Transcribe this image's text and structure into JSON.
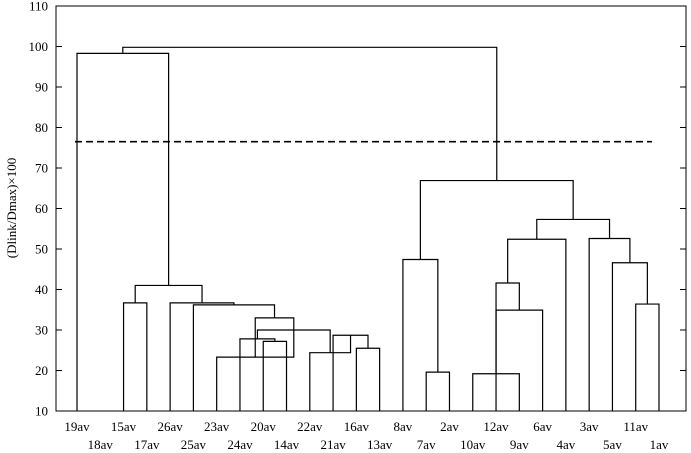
{
  "chart_data": {
    "type": "dendrogram",
    "ylabel": "(Dlink/Dmax)×100",
    "ylim": [
      10,
      110
    ],
    "yticks": [
      10,
      20,
      30,
      40,
      50,
      60,
      70,
      80,
      90,
      100,
      110
    ],
    "threshold": 76.5,
    "leaves": [
      "19av",
      "18av",
      "15av",
      "17av",
      "26av",
      "25av",
      "23av",
      "24av",
      "20av",
      "14av",
      "22av",
      "21av",
      "16av",
      "13av",
      "8av",
      "7av",
      "2av",
      "10av",
      "12av",
      "9av",
      "6av",
      "4av",
      "3av",
      "5av",
      "11av",
      "1av"
    ],
    "merges": [
      {
        "id": "A",
        "children": [
          "16av",
          "13av"
        ],
        "height": 25.5
      },
      {
        "id": "B",
        "children": [
          "21av",
          "A"
        ],
        "height": 28.7
      },
      {
        "id": "C",
        "children": [
          "20av",
          "14av"
        ],
        "height": 27.2
      },
      {
        "id": "D",
        "children": [
          "24av",
          "C"
        ],
        "height": 27.8
      },
      {
        "id": "E",
        "children": [
          "22av",
          "B"
        ],
        "height": 24.4
      },
      {
        "id": "F",
        "children": [
          "D",
          "E"
        ],
        "height": 30.0
      },
      {
        "id": "G",
        "children": [
          "23av",
          "F"
        ],
        "height": 23.3
      },
      {
        "id": "H",
        "children": [
          "G",
          "F"
        ],
        "height": 33.0
      },
      {
        "id": "I",
        "children": [
          "25av",
          "H"
        ],
        "height": 36.2
      },
      {
        "id": "J",
        "children": [
          "26av",
          "I"
        ],
        "height": 36.7
      },
      {
        "id": "K",
        "children": [
          "15av",
          "17av"
        ],
        "height": 36.7
      },
      {
        "id": "L",
        "children": [
          "K",
          "J"
        ],
        "height": 41.0
      },
      {
        "id": "M",
        "children": [
          "19av",
          "L"
        ],
        "height": 98.3
      },
      {
        "id": "N",
        "children": [
          "7av",
          "2av"
        ],
        "height": 19.6
      },
      {
        "id": "O",
        "children": [
          "8av",
          "N"
        ],
        "height": 47.4
      },
      {
        "id": "P",
        "children": [
          "10av",
          "9av"
        ],
        "height": 19.2
      },
      {
        "id": "Q",
        "children": [
          "P",
          "6av"
        ],
        "height": 34.9
      },
      {
        "id": "R",
        "children": [
          "12av",
          "Q"
        ],
        "height": 41.6
      },
      {
        "id": "S",
        "children": [
          "R",
          "4av"
        ],
        "height": 52.4
      },
      {
        "id": "T",
        "children": [
          "11av",
          "1av"
        ],
        "height": 36.4
      },
      {
        "id": "U",
        "children": [
          "5av",
          "T"
        ],
        "height": 46.6
      },
      {
        "id": "V",
        "children": [
          "3av",
          "U"
        ],
        "height": 52.6
      },
      {
        "id": "W",
        "children": [
          "S",
          "V"
        ],
        "height": 57.3
      },
      {
        "id": "X",
        "children": [
          "O",
          "W"
        ],
        "height": 66.9
      },
      {
        "id": "Y",
        "children": [
          "M",
          "X"
        ],
        "height": 99.8
      }
    ]
  }
}
